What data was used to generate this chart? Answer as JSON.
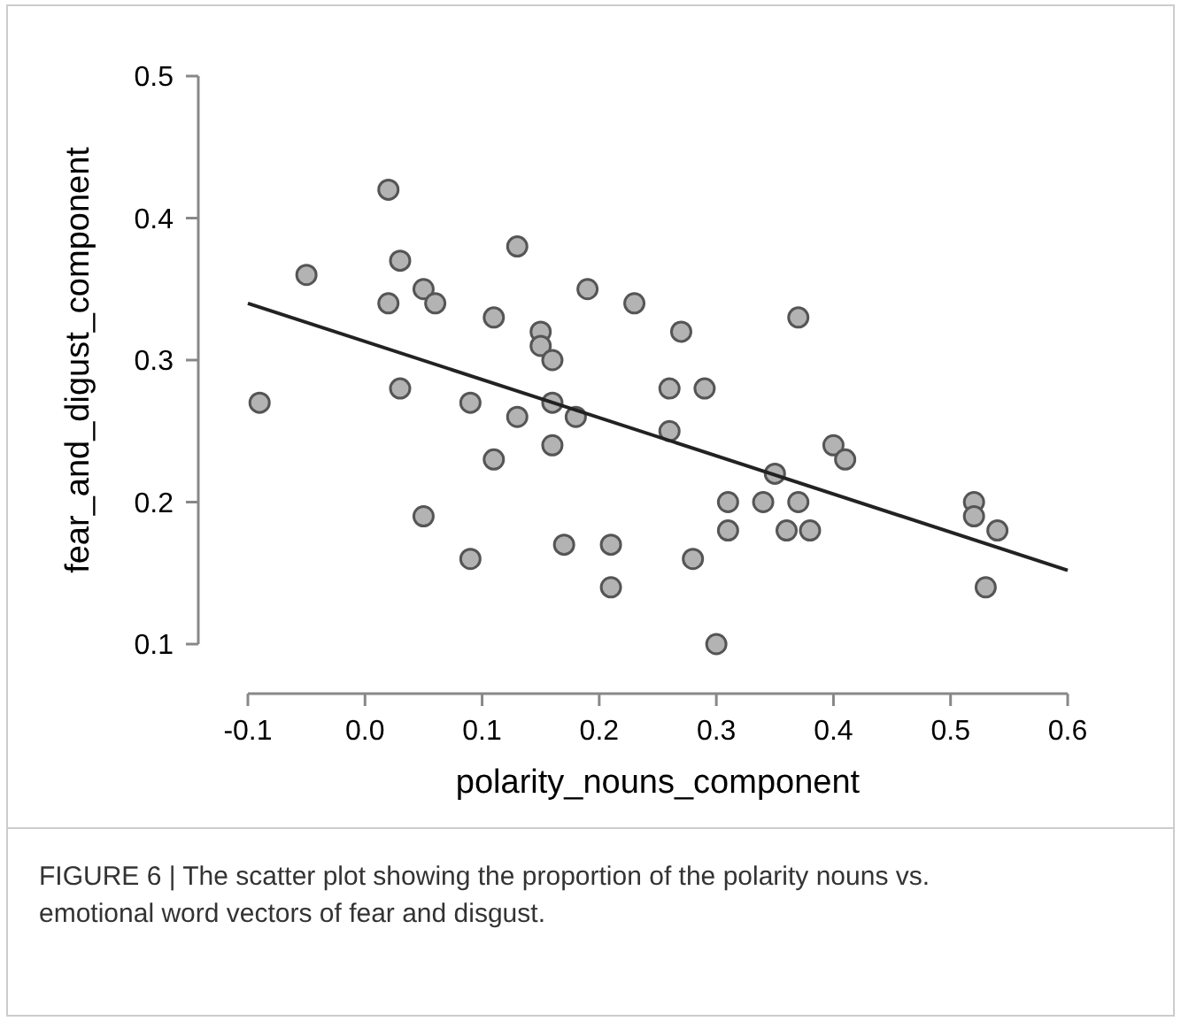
{
  "chart_data": {
    "type": "scatter",
    "xlabel": "polarity_nouns_component",
    "ylabel": "fear_and_digust_component",
    "xlim": [
      -0.1,
      0.6
    ],
    "ylim": [
      0.1,
      0.5
    ],
    "xticks": [
      {
        "value": -0.1,
        "label": "-0.1"
      },
      {
        "value": 0,
        "label": "0.0"
      },
      {
        "value": 0.1,
        "label": "0.1"
      },
      {
        "value": 0.2,
        "label": "0.2"
      },
      {
        "value": 0.3,
        "label": "0.3"
      },
      {
        "value": 0.4,
        "label": "0.4"
      },
      {
        "value": 0.5,
        "label": "0.5"
      },
      {
        "value": 0.6,
        "label": "0.6"
      }
    ],
    "yticks": [
      0.1,
      0.2,
      0.3,
      0.4,
      0.5
    ],
    "grid": false,
    "marker": "circle",
    "annotations": [
      "FIGURE 6 | The scatter plot showing the proportion of the polarity nouns vs. emotional word vectors of fear and disgust."
    ],
    "series": [
      {
        "color": "#b3b3b3",
        "x": [
          -0.09,
          -0.05,
          0.02,
          0.02,
          0.03,
          0.03,
          0.05,
          0.06,
          0.05,
          0.09,
          0.09,
          0.11,
          0.11,
          0.13,
          0.13,
          0.15,
          0.15,
          0.16,
          0.16,
          0.16,
          0.18,
          0.17,
          0.19,
          0.21,
          0.21,
          0.23,
          0.26,
          0.26,
          0.27,
          0.29,
          0.28,
          0.3,
          0.31,
          0.31,
          0.34,
          0.35,
          0.36,
          0.37,
          0.37,
          0.38,
          0.4,
          0.41,
          0.52,
          0.52,
          0.53,
          0.54
        ],
        "values": [
          0.27,
          0.36,
          0.42,
          0.34,
          0.37,
          0.28,
          0.35,
          0.34,
          0.19,
          0.27,
          0.16,
          0.33,
          0.23,
          0.38,
          0.26,
          0.32,
          0.31,
          0.3,
          0.27,
          0.24,
          0.26,
          0.17,
          0.35,
          0.17,
          0.14,
          0.34,
          0.28,
          0.25,
          0.32,
          0.28,
          0.16,
          0.1,
          0.2,
          0.18,
          0.2,
          0.22,
          0.18,
          0.33,
          0.2,
          0.18,
          0.24,
          0.23,
          0.2,
          0.19,
          0.14,
          0.18
        ]
      },
      {
        "type": "line",
        "color": "#222222",
        "marker": "none",
        "x": [
          -0.1,
          0.6
        ],
        "values": [
          0.34,
          0.152
        ]
      }
    ]
  }
}
